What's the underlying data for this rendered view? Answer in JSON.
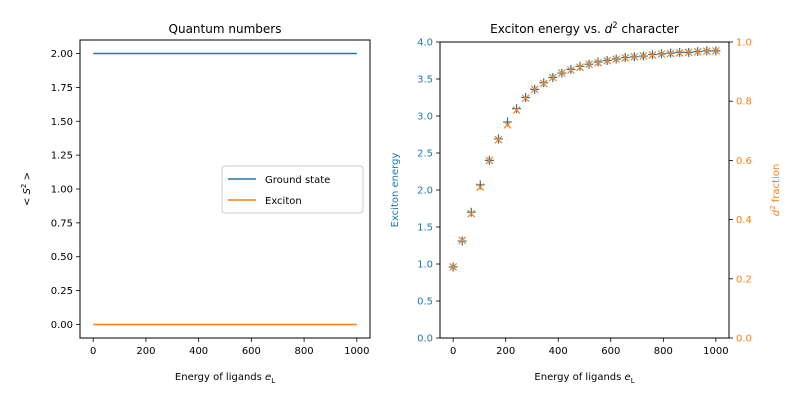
{
  "chart_data": [
    {
      "type": "line",
      "title": "Quantum numbers",
      "xlabel": "Energy of ligands e_L",
      "ylabel": "< S^2 >",
      "xlim": [
        -50,
        1050
      ],
      "ylim": [
        -0.1,
        2.1
      ],
      "x_ticks": [
        0,
        200,
        400,
        600,
        800,
        1000
      ],
      "y_ticks": [
        "0.00",
        "0.25",
        "0.50",
        "0.75",
        "1.00",
        "1.25",
        "1.50",
        "1.75",
        "2.00"
      ],
      "legend_position": "center-right",
      "series": [
        {
          "name": "Ground state",
          "color": "#1f77b4",
          "x": [
            0,
            1000
          ],
          "values": [
            2.0,
            2.0
          ]
        },
        {
          "name": "Exciton",
          "color": "#ff7f0e",
          "x": [
            0,
            1000
          ],
          "values": [
            0.0,
            0.0
          ]
        }
      ]
    },
    {
      "type": "scatter",
      "title": "Exciton energy vs. d^2 character",
      "xlabel": "Energy of ligands e_L",
      "ylabel": "Exciton energy",
      "y2label": "d^2 fraction",
      "xlim": [
        -50,
        1050
      ],
      "ylim": [
        0,
        4
      ],
      "y2lim": [
        0,
        1
      ],
      "x_ticks": [
        0,
        200,
        400,
        600,
        800,
        1000
      ],
      "y_ticks": [
        "0.0",
        "0.5",
        "1.0",
        "1.5",
        "2.0",
        "2.5",
        "3.0",
        "3.5",
        "4.0"
      ],
      "y2_ticks": [
        "0.0",
        "0.2",
        "0.4",
        "0.6",
        "0.8",
        "1.0"
      ],
      "left_axis_color": "#1f77b4",
      "right_axis_color": "#ff7f0e",
      "x": [
        0,
        34.5,
        69,
        103.4,
        137.9,
        172.4,
        206.9,
        241.4,
        275.9,
        310.3,
        344.8,
        379.3,
        413.8,
        448.3,
        482.8,
        517.2,
        551.7,
        586.2,
        620.7,
        655.2,
        689.7,
        724.1,
        758.6,
        793.1,
        827.6,
        862.1,
        896.6,
        931,
        965.5,
        1000
      ],
      "series": [
        {
          "axis": "left",
          "marker": "plus",
          "color": "#1f77b4",
          "values": [
            0.96,
            1.31,
            1.7,
            2.07,
            2.4,
            2.69,
            2.92,
            3.1,
            3.25,
            3.36,
            3.45,
            3.52,
            3.58,
            3.63,
            3.67,
            3.7,
            3.73,
            3.75,
            3.77,
            3.79,
            3.8,
            3.81,
            3.83,
            3.84,
            3.85,
            3.86,
            3.86,
            3.87,
            3.88,
            3.88
          ]
        },
        {
          "axis": "right",
          "marker": "x",
          "color": "#ff7f0e",
          "values": [
            0.24,
            0.33,
            0.42,
            0.51,
            0.6,
            0.67,
            0.72,
            0.77,
            0.81,
            0.84,
            0.86,
            0.88,
            0.895,
            0.905,
            0.915,
            0.925,
            0.93,
            0.937,
            0.942,
            0.946,
            0.95,
            0.953,
            0.956,
            0.959,
            0.961,
            0.963,
            0.965,
            0.967,
            0.969,
            0.97
          ]
        }
      ]
    }
  ]
}
